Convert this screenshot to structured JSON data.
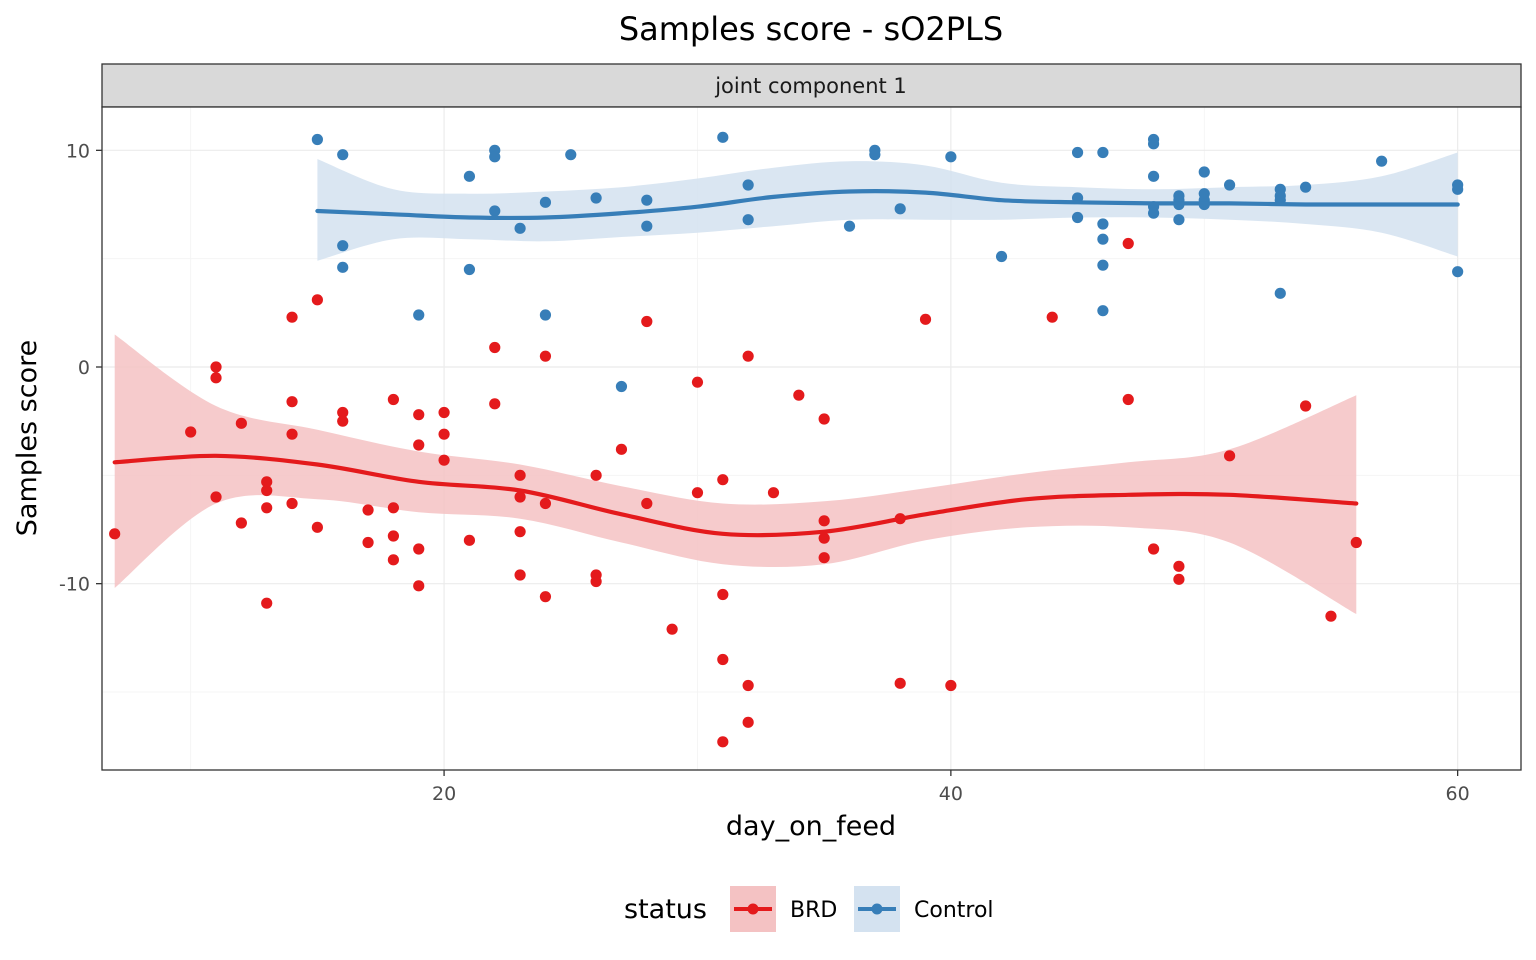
{
  "chart_data": {
    "type": "scatter",
    "title": "Samples score - sO2PLS",
    "facet_label": "joint component 1",
    "xlabel": "day_on_feed",
    "ylabel": "Samples score",
    "xlim": [
      6.5,
      62.5
    ],
    "ylim": [
      -18.6,
      12
    ],
    "x_ticks": [
      20,
      40,
      60
    ],
    "y_ticks": [
      -10,
      0,
      10
    ],
    "x_minor_ticks": [
      10,
      30,
      50
    ],
    "y_minor_ticks": [
      -15,
      -5,
      5
    ],
    "grid": true,
    "legend": {
      "title": "status",
      "position": "bottom"
    },
    "series": [
      {
        "name": "BRD",
        "color": "#e41a1c",
        "fill": "#f4c2c3",
        "points": [
          [
            7,
            -7.7
          ],
          [
            10,
            -3
          ],
          [
            11,
            0
          ],
          [
            11,
            -0.5
          ],
          [
            11,
            -6
          ],
          [
            12,
            -2.6
          ],
          [
            12,
            -7.2
          ],
          [
            13,
            -5.3
          ],
          [
            13,
            -5.7
          ],
          [
            13,
            -6.5
          ],
          [
            13,
            -10.9
          ],
          [
            14,
            2.3
          ],
          [
            14,
            -1.6
          ],
          [
            14,
            -3.1
          ],
          [
            14,
            -6.3
          ],
          [
            15,
            3.1
          ],
          [
            15,
            -7.4
          ],
          [
            16,
            -2.1
          ],
          [
            16,
            -2.5
          ],
          [
            17,
            -6.6
          ],
          [
            17,
            -8.1
          ],
          [
            18,
            -1.5
          ],
          [
            18,
            -6.5
          ],
          [
            18,
            -7.8
          ],
          [
            18,
            -8.9
          ],
          [
            19,
            -2.2
          ],
          [
            19,
            -3.6
          ],
          [
            19,
            -8.4
          ],
          [
            19,
            -10.1
          ],
          [
            20,
            -2.1
          ],
          [
            20,
            -3.1
          ],
          [
            20,
            -4.3
          ],
          [
            21,
            -8
          ],
          [
            22,
            0.9
          ],
          [
            22,
            -1.7
          ],
          [
            23,
            -5
          ],
          [
            23,
            -6
          ],
          [
            23,
            -7.6
          ],
          [
            23,
            -9.6
          ],
          [
            24,
            0.5
          ],
          [
            24,
            -6.3
          ],
          [
            24,
            -10.6
          ],
          [
            26,
            -5
          ],
          [
            26,
            -9.6
          ],
          [
            26,
            -9.9
          ],
          [
            27,
            -3.8
          ],
          [
            28,
            2.1
          ],
          [
            28,
            -6.3
          ],
          [
            29,
            -12.1
          ],
          [
            30,
            -0.7
          ],
          [
            30,
            -5.8
          ],
          [
            31,
            -5.2
          ],
          [
            31,
            -10.5
          ],
          [
            31,
            -13.5
          ],
          [
            31,
            -17.3
          ],
          [
            32,
            0.5
          ],
          [
            32,
            -14.7
          ],
          [
            32,
            -16.4
          ],
          [
            33,
            -5.8
          ],
          [
            34,
            -1.3
          ],
          [
            35,
            -2.4
          ],
          [
            35,
            -7.1
          ],
          [
            35,
            -7.9
          ],
          [
            35,
            -8.8
          ],
          [
            38,
            -7
          ],
          [
            38,
            -14.6
          ],
          [
            39,
            2.2
          ],
          [
            40,
            -14.7
          ],
          [
            44,
            2.3
          ],
          [
            47,
            5.7
          ],
          [
            47,
            -1.5
          ],
          [
            48,
            -8.4
          ],
          [
            49,
            -9.2
          ],
          [
            49,
            -9.8
          ],
          [
            51,
            -4.1
          ],
          [
            54,
            -1.8
          ],
          [
            55,
            -11.5
          ],
          [
            56,
            -8.1
          ]
        ],
        "smooth": [
          [
            7,
            -4.4
          ],
          [
            11,
            -4.1
          ],
          [
            15,
            -4.5
          ],
          [
            19,
            -5.3
          ],
          [
            23,
            -5.7
          ],
          [
            27,
            -6.8
          ],
          [
            31,
            -7.7
          ],
          [
            35,
            -7.6
          ],
          [
            39,
            -6.8
          ],
          [
            43,
            -6.1
          ],
          [
            47,
            -5.9
          ],
          [
            51,
            -5.9
          ],
          [
            56,
            -6.3
          ]
        ],
        "band_upper": [
          [
            7,
            1.5
          ],
          [
            11,
            -1.8
          ],
          [
            15,
            -2.9
          ],
          [
            19,
            -3.9
          ],
          [
            23,
            -4.5
          ],
          [
            27,
            -5.5
          ],
          [
            31,
            -6.3
          ],
          [
            35,
            -6.2
          ],
          [
            39,
            -5.6
          ],
          [
            43,
            -4.9
          ],
          [
            47,
            -4.4
          ],
          [
            51,
            -3.8
          ],
          [
            56,
            -1.3
          ]
        ],
        "band_lower": [
          [
            7,
            -10.2
          ],
          [
            11,
            -6.3
          ],
          [
            15,
            -6.1
          ],
          [
            19,
            -6.7
          ],
          [
            23,
            -7
          ],
          [
            27,
            -8.1
          ],
          [
            31,
            -9.1
          ],
          [
            35,
            -9.1
          ],
          [
            39,
            -8
          ],
          [
            43,
            -7.4
          ],
          [
            47,
            -7.4
          ],
          [
            51,
            -8.1
          ],
          [
            56,
            -11.4
          ]
        ]
      },
      {
        "name": "Control",
        "color": "#377eb8",
        "fill": "#d4e2f0",
        "points": [
          [
            15,
            10.5
          ],
          [
            16,
            9.8
          ],
          [
            16,
            5.6
          ],
          [
            16,
            4.6
          ],
          [
            19,
            2.4
          ],
          [
            21,
            8.8
          ],
          [
            21,
            4.5
          ],
          [
            22,
            10
          ],
          [
            22,
            9.7
          ],
          [
            22,
            7.2
          ],
          [
            23,
            6.4
          ],
          [
            24,
            7.6
          ],
          [
            24,
            2.4
          ],
          [
            25,
            9.8
          ],
          [
            26,
            7.8
          ],
          [
            27,
            -0.9
          ],
          [
            28,
            7.7
          ],
          [
            28,
            6.5
          ],
          [
            31,
            10.6
          ],
          [
            32,
            8.4
          ],
          [
            32,
            6.8
          ],
          [
            36,
            6.5
          ],
          [
            37,
            10
          ],
          [
            37,
            9.8
          ],
          [
            38,
            7.3
          ],
          [
            40,
            9.7
          ],
          [
            42,
            5.1
          ],
          [
            45,
            9.9
          ],
          [
            45,
            7.8
          ],
          [
            45,
            6.9
          ],
          [
            46,
            9.9
          ],
          [
            46,
            6.6
          ],
          [
            46,
            5.9
          ],
          [
            46,
            4.7
          ],
          [
            46,
            2.6
          ],
          [
            48,
            10.5
          ],
          [
            48,
            10.3
          ],
          [
            48,
            8.8
          ],
          [
            48,
            7.4
          ],
          [
            48,
            7.1
          ],
          [
            49,
            7.9
          ],
          [
            49,
            7.7
          ],
          [
            49,
            7.5
          ],
          [
            49,
            6.8
          ],
          [
            50,
            9
          ],
          [
            50,
            8
          ],
          [
            50,
            7.7
          ],
          [
            50,
            7.5
          ],
          [
            51,
            8.4
          ],
          [
            53,
            8.2
          ],
          [
            53,
            7.9
          ],
          [
            53,
            7.7
          ],
          [
            53,
            3.4
          ],
          [
            54,
            8.3
          ],
          [
            57,
            9.5
          ],
          [
            60,
            8.4
          ],
          [
            60,
            8.2
          ],
          [
            60,
            4.4
          ]
        ],
        "smooth": [
          [
            15,
            7.2
          ],
          [
            18,
            7.05
          ],
          [
            21,
            6.9
          ],
          [
            24,
            6.9
          ],
          [
            27,
            7.1
          ],
          [
            30,
            7.4
          ],
          [
            33,
            7.85
          ],
          [
            36,
            8.1
          ],
          [
            39,
            8.05
          ],
          [
            42,
            7.7
          ],
          [
            45,
            7.6
          ],
          [
            48,
            7.55
          ],
          [
            51,
            7.55
          ],
          [
            54,
            7.5
          ],
          [
            57,
            7.5
          ],
          [
            60,
            7.5
          ]
        ],
        "band_upper": [
          [
            15,
            9.6
          ],
          [
            18,
            8.2
          ],
          [
            21,
            8.0
          ],
          [
            24,
            8.1
          ],
          [
            27,
            8.3
          ],
          [
            30,
            8.7
          ],
          [
            33,
            9.2
          ],
          [
            36,
            9.5
          ],
          [
            39,
            9.3
          ],
          [
            42,
            8.5
          ],
          [
            45,
            8.3
          ],
          [
            48,
            8.2
          ],
          [
            51,
            8.3
          ],
          [
            54,
            8.4
          ],
          [
            57,
            8.8
          ],
          [
            60,
            9.9
          ]
        ],
        "band_lower": [
          [
            15,
            4.9
          ],
          [
            18,
            5.9
          ],
          [
            21,
            5.9
          ],
          [
            24,
            5.8
          ],
          [
            27,
            6.0
          ],
          [
            30,
            6.2
          ],
          [
            33,
            6.5
          ],
          [
            36,
            6.8
          ],
          [
            39,
            6.8
          ],
          [
            42,
            6.8
          ],
          [
            45,
            6.9
          ],
          [
            48,
            6.9
          ],
          [
            51,
            6.8
          ],
          [
            54,
            6.6
          ],
          [
            57,
            6.2
          ],
          [
            60,
            5.1
          ]
        ]
      }
    ]
  }
}
